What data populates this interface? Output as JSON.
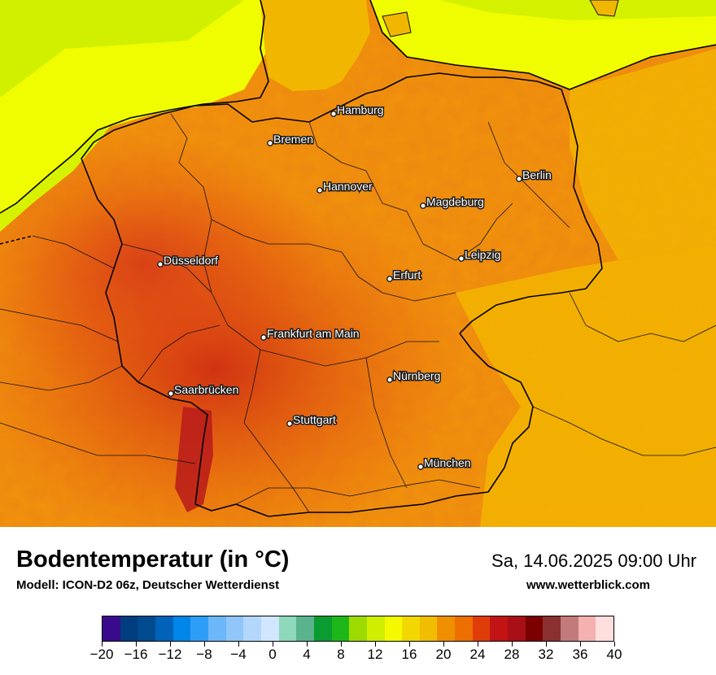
{
  "map": {
    "cities": [
      {
        "name": "Hamburg"
      },
      {
        "name": "Bremen"
      },
      {
        "name": "Hannover"
      },
      {
        "name": "Berlin"
      },
      {
        "name": "Magdeburg"
      },
      {
        "name": "Düsseldorf"
      },
      {
        "name": "Leipzig"
      },
      {
        "name": "Erfurt"
      },
      {
        "name": "Frankfurt am Main"
      },
      {
        "name": "Nürnberg"
      },
      {
        "name": "Saarbrücken"
      },
      {
        "name": "Stuttgart"
      },
      {
        "name": "München"
      }
    ]
  },
  "header": {
    "title": "Bodentemperatur (in °C)",
    "subtitle": "Modell: ICON-D2 06z, Deutscher Wetterdienst",
    "datetime": "Sa, 14.06.2025 09:00 Uhr",
    "website": "www.wetterblick.com"
  },
  "legend": {
    "colors": [
      "#3a0a8c",
      "#003d7e",
      "#004a8f",
      "#0062b8",
      "#0085e8",
      "#2e9df7",
      "#6cb7f8",
      "#90c6f9",
      "#b2d7fb",
      "#d1e7fd",
      "#8ed8bb",
      "#5ab38d",
      "#0a9c30",
      "#1eb71a",
      "#9ddb00",
      "#d0ee00",
      "#f4f900",
      "#f2d700",
      "#f1bd00",
      "#f08f00",
      "#ec6f00",
      "#e03c0a",
      "#c21414",
      "#a80f16",
      "#7b0000",
      "#8b3030",
      "#c27a7a",
      "#f5b0b0",
      "#ffdede"
    ],
    "ticks": [
      "−20",
      "−16",
      "−12",
      "−8",
      "−4",
      "0",
      "4",
      "8",
      "12",
      "16",
      "20",
      "24",
      "28",
      "32",
      "36",
      "40"
    ]
  }
}
